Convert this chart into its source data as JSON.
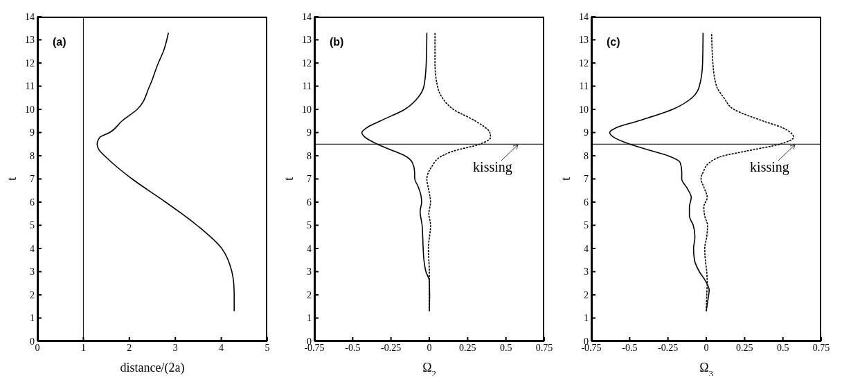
{
  "chart_data": [
    {
      "type": "line",
      "xlabel": "distance/(2a)",
      "ylabel": "t",
      "annotations": [
        "(a)"
      ],
      "xlim": [
        0,
        5
      ],
      "xticks": [
        0,
        1,
        2,
        3,
        4,
        5
      ],
      "ylim": [
        0,
        14
      ],
      "yticks": [
        0,
        1,
        2,
        3,
        4,
        5,
        6,
        7,
        8,
        9,
        10,
        11,
        12,
        13,
        14
      ],
      "marker": "none",
      "ref_lines": [
        {
          "axis": "x",
          "value": 1,
          "color": "#000000"
        }
      ],
      "series": [
        {
          "color": "#000000",
          "line_style": "solid",
          "x": [
            4.28,
            4.28,
            4.27,
            4.23,
            4.01,
            3.47,
            2.79,
            2.06,
            1.74,
            1.46,
            1.36,
            1.3,
            1.36,
            1.57,
            1.84,
            2.17,
            2.44,
            2.63,
            2.74,
            2.85
          ],
          "values": [
            1.3,
            2,
            2.5,
            3,
            4,
            5,
            6,
            7,
            7.5,
            8,
            8.2,
            8.5,
            8.8,
            9,
            9.5,
            10,
            11,
            12,
            12.5,
            13.3
          ]
        }
      ]
    },
    {
      "type": "line",
      "xlabel": "Ω$_{2}$",
      "ylabel": "t",
      "annotations": [
        "(b)",
        "kissing"
      ],
      "xlim": [
        -0.75,
        0.75
      ],
      "xticks": [
        -0.75,
        -0.5,
        -0.25,
        0,
        0.25,
        0.5,
        0.75
      ],
      "ylim": [
        0,
        14
      ],
      "yticks": [
        0,
        1,
        2,
        3,
        4,
        5,
        6,
        7,
        8,
        9,
        10,
        11,
        12,
        13,
        14
      ],
      "marker": "none",
      "ref_lines": [
        {
          "axis": "y",
          "value": 8.5,
          "color": "#000000"
        }
      ],
      "series": [
        {
          "color": "#000000",
          "line_style": "solid",
          "x": [
            0,
            0.002,
            0,
            -0.022,
            -0.035,
            -0.04,
            -0.043,
            -0.047,
            -0.06,
            -0.05,
            -0.055,
            -0.075,
            -0.095,
            -0.096,
            -0.11,
            -0.16,
            -0.23,
            -0.34,
            -0.42,
            -0.44,
            -0.41,
            -0.32,
            -0.16,
            -0.075,
            -0.035,
            -0.02,
            -0.016
          ],
          "values": [
            1.3,
            2,
            2.6,
            3,
            3.5,
            4,
            4.5,
            5,
            5.6,
            6,
            6.3,
            6.7,
            7,
            7.3,
            7.7,
            8,
            8.2,
            8.5,
            8.8,
            9,
            9.2,
            9.5,
            10,
            10.5,
            11,
            12,
            13.3
          ]
        },
        {
          "color": "#000000",
          "line_style": "dashed",
          "x": [
            0,
            0,
            0,
            -0.006,
            0.008,
            -0.003,
            0.008,
            -0.003,
            -0.016,
            0.013,
            0.085,
            0.157,
            0.33,
            0.4,
            0.395,
            0.3,
            0.157,
            0.085,
            0.053,
            0.037,
            0.037
          ],
          "values": [
            1.3,
            2,
            3,
            4,
            5,
            5.5,
            6,
            6.5,
            7,
            7.5,
            8,
            8.2,
            8.5,
            8.8,
            9,
            9.5,
            10,
            10.5,
            11,
            12,
            13.3
          ]
        }
      ]
    },
    {
      "type": "line",
      "xlabel": "Ω$_{3}$",
      "ylabel": "t",
      "annotations": [
        "(c)",
        "kissing"
      ],
      "xlim": [
        -0.75,
        0.75
      ],
      "xticks": [
        -0.75,
        -0.5,
        -0.25,
        0,
        0.25,
        0.5,
        0.75
      ],
      "ylim": [
        0,
        14
      ],
      "yticks": [
        0,
        1,
        2,
        3,
        4,
        5,
        6,
        7,
        8,
        9,
        10,
        11,
        12,
        13,
        14
      ],
      "marker": "none",
      "ref_lines": [
        {
          "axis": "y",
          "value": 8.5,
          "color": "#000000"
        }
      ],
      "series": [
        {
          "color": "#000000",
          "line_style": "solid",
          "x": [
            0,
            0.011,
            0.019,
            -0.005,
            -0.045,
            -0.077,
            -0.083,
            -0.074,
            -0.085,
            -0.11,
            -0.11,
            -0.098,
            -0.125,
            -0.16,
            -0.16,
            -0.17,
            -0.25,
            -0.35,
            -0.5,
            -0.605,
            -0.63,
            -0.59,
            -0.445,
            -0.22,
            -0.093,
            -0.045,
            -0.024,
            -0.021
          ],
          "values": [
            1.3,
            1.8,
            2.2,
            2.6,
            3,
            3.5,
            4,
            4.5,
            5,
            5.4,
            5.8,
            6.2,
            6.6,
            7,
            7.3,
            7.7,
            8,
            8.2,
            8.5,
            8.8,
            9,
            9.2,
            9.5,
            10,
            10.5,
            11,
            12,
            13.3
          ]
        },
        {
          "color": "#000000",
          "line_style": "dashed",
          "x": [
            0,
            0.003,
            0.006,
            0.003,
            -0.006,
            -0.01,
            0.003,
            0.008,
            -0.01,
            -0.016,
            0.006,
            -0.013,
            -0.034,
            -0.02,
            0.02,
            0.115,
            0.26,
            0.48,
            0.57,
            0.55,
            0.5,
            0.37,
            0.18,
            0.115,
            0.067,
            0.043,
            0.035
          ],
          "values": [
            1.3,
            2,
            2.5,
            3,
            3.5,
            4,
            4.5,
            5,
            5.4,
            5.8,
            6.2,
            6.6,
            7,
            7.3,
            7.7,
            8,
            8.2,
            8.5,
            8.8,
            9,
            9.2,
            9.5,
            10,
            10.5,
            11,
            12,
            13.3
          ]
        }
      ]
    }
  ]
}
